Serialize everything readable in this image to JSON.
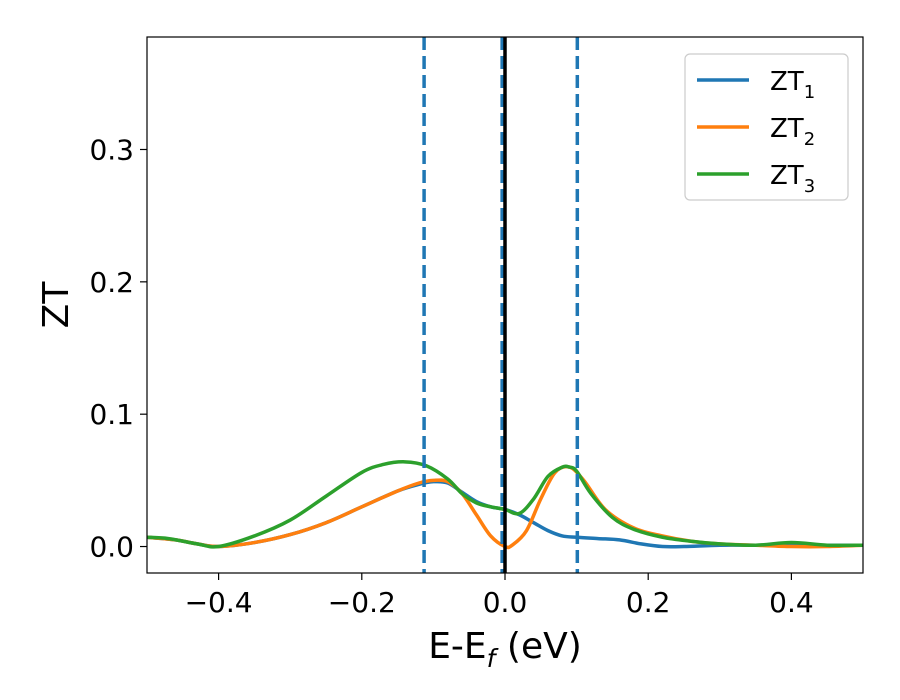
{
  "chart_data": {
    "type": "line",
    "title": "",
    "xlabel": "E-E",
    "xlabel_sub": "f",
    "xlabel_unit": " (eV)",
    "ylabel": "ZT",
    "xlim": [
      -0.5,
      0.5
    ],
    "ylim": [
      -0.02,
      0.385
    ],
    "xticks": [
      -0.4,
      -0.2,
      0.0,
      0.2,
      0.4
    ],
    "xtick_labels": [
      "−0.4",
      "−0.2",
      "0.0",
      "0.2",
      "0.4"
    ],
    "yticks": [
      0.0,
      0.1,
      0.2,
      0.3
    ],
    "ytick_labels": [
      "0.0",
      "0.1",
      "0.2",
      "0.3"
    ],
    "grid": false,
    "legend_position": "top-right",
    "vlines": [
      {
        "x": -0.113,
        "style": "dashed",
        "color": "#1f77b4"
      },
      {
        "x": -0.004,
        "style": "dashed",
        "color": "#1f77b4"
      },
      {
        "x": 0.0,
        "style": "solid",
        "color": "#000000"
      },
      {
        "x": 0.101,
        "style": "dashed",
        "color": "#1f77b4"
      }
    ],
    "series": [
      {
        "name": "ZT",
        "sub": "1",
        "color": "#1f77b4",
        "x": [
          -0.5,
          -0.46,
          -0.43,
          -0.4,
          -0.35,
          -0.3,
          -0.25,
          -0.2,
          -0.15,
          -0.12,
          -0.1,
          -0.08,
          -0.06,
          -0.04,
          -0.02,
          0.0,
          0.02,
          0.04,
          0.06,
          0.08,
          0.1,
          0.13,
          0.16,
          0.19,
          0.22,
          0.25,
          0.3,
          0.35,
          0.4,
          0.45,
          0.5
        ],
        "y": [
          0.007,
          0.005,
          0.002,
          0.0,
          0.003,
          0.009,
          0.018,
          0.03,
          0.042,
          0.047,
          0.049,
          0.048,
          0.041,
          0.034,
          0.03,
          0.028,
          0.024,
          0.018,
          0.012,
          0.008,
          0.007,
          0.006,
          0.005,
          0.002,
          0.0,
          0.0,
          0.001,
          0.001,
          0.001,
          0.001,
          0.001
        ]
      },
      {
        "name": "ZT",
        "sub": "2",
        "color": "#ff7f0e",
        "x": [
          -0.5,
          -0.46,
          -0.43,
          -0.4,
          -0.35,
          -0.3,
          -0.25,
          -0.2,
          -0.15,
          -0.12,
          -0.1,
          -0.08,
          -0.06,
          -0.04,
          -0.02,
          0.0,
          0.01,
          0.03,
          0.05,
          0.07,
          0.09,
          0.11,
          0.14,
          0.18,
          0.22,
          0.26,
          0.3,
          0.35,
          0.4,
          0.45,
          0.5
        ],
        "y": [
          0.007,
          0.005,
          0.002,
          0.0,
          0.003,
          0.009,
          0.018,
          0.03,
          0.042,
          0.048,
          0.05,
          0.049,
          0.04,
          0.024,
          0.008,
          0.0,
          0.001,
          0.012,
          0.036,
          0.056,
          0.06,
          0.05,
          0.028,
          0.014,
          0.008,
          0.004,
          0.002,
          0.001,
          0.0,
          0.0,
          0.001
        ]
      },
      {
        "name": "ZT",
        "sub": "3",
        "color": "#2ca02c",
        "x": [
          -0.5,
          -0.47,
          -0.43,
          -0.4,
          -0.35,
          -0.3,
          -0.25,
          -0.2,
          -0.17,
          -0.14,
          -0.11,
          -0.08,
          -0.06,
          -0.04,
          -0.02,
          0.0,
          0.02,
          0.04,
          0.06,
          0.08,
          0.09,
          0.1,
          0.12,
          0.15,
          0.18,
          0.22,
          0.26,
          0.3,
          0.35,
          0.4,
          0.45,
          0.5
        ],
        "y": [
          0.007,
          0.006,
          0.002,
          0.0,
          0.008,
          0.02,
          0.038,
          0.056,
          0.062,
          0.064,
          0.061,
          0.051,
          0.04,
          0.033,
          0.03,
          0.028,
          0.025,
          0.036,
          0.053,
          0.06,
          0.06,
          0.057,
          0.04,
          0.022,
          0.013,
          0.007,
          0.004,
          0.002,
          0.001,
          0.003,
          0.001,
          0.001
        ]
      }
    ]
  }
}
